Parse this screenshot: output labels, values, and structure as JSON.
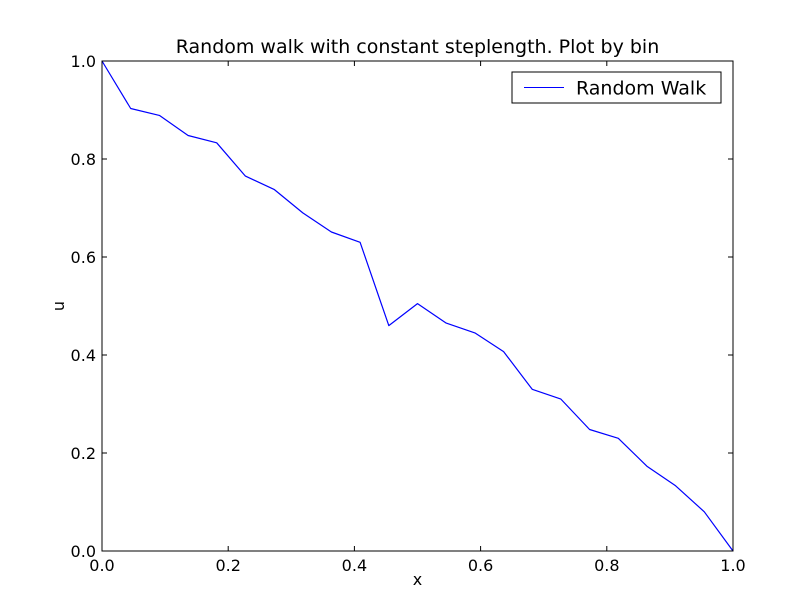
{
  "chart_data": {
    "type": "line",
    "title": "Random walk with constant steplength. Plot by bin",
    "xlabel": "x",
    "ylabel": "u",
    "xlim": [
      0.0,
      1.0
    ],
    "ylim": [
      0.0,
      1.0
    ],
    "grid": false,
    "legend_position": "top-right",
    "x_ticks": [
      "0.0",
      "0.2",
      "0.4",
      "0.6",
      "0.8",
      "1.0"
    ],
    "y_ticks": [
      "0.0",
      "0.2",
      "0.4",
      "0.6",
      "0.8",
      "1.0"
    ],
    "series": [
      {
        "name": "Random Walk",
        "color": "#0000ff",
        "x": [
          0.0,
          0.0455,
          0.0909,
          0.1364,
          0.1818,
          0.2273,
          0.2727,
          0.3182,
          0.3636,
          0.4091,
          0.4545,
          0.5,
          0.5455,
          0.5909,
          0.6364,
          0.6818,
          0.7273,
          0.7727,
          0.8182,
          0.8636,
          0.9091,
          0.9545,
          1.0
        ],
        "y": [
          1.0,
          0.903,
          0.889,
          0.848,
          0.833,
          0.765,
          0.738,
          0.69,
          0.651,
          0.63,
          0.46,
          0.505,
          0.465,
          0.445,
          0.407,
          0.33,
          0.31,
          0.248,
          0.23,
          0.173,
          0.133,
          0.08,
          0.0
        ]
      }
    ]
  }
}
